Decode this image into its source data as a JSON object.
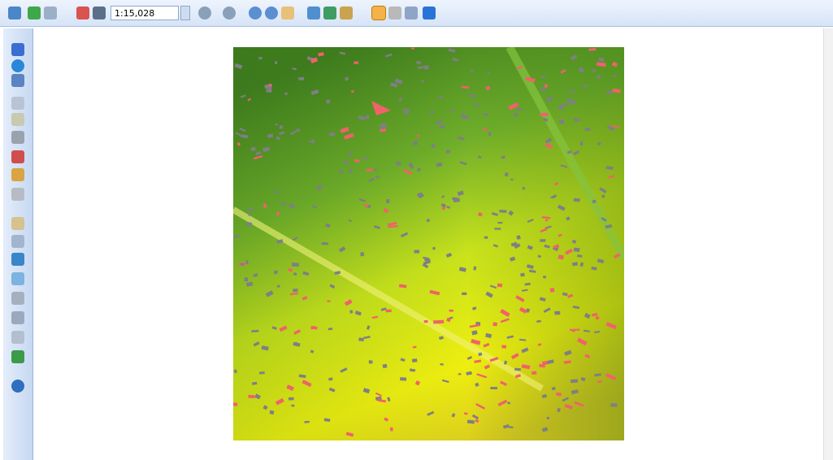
{
  "toolbar": {
    "scale": "1:15,028"
  }
}
